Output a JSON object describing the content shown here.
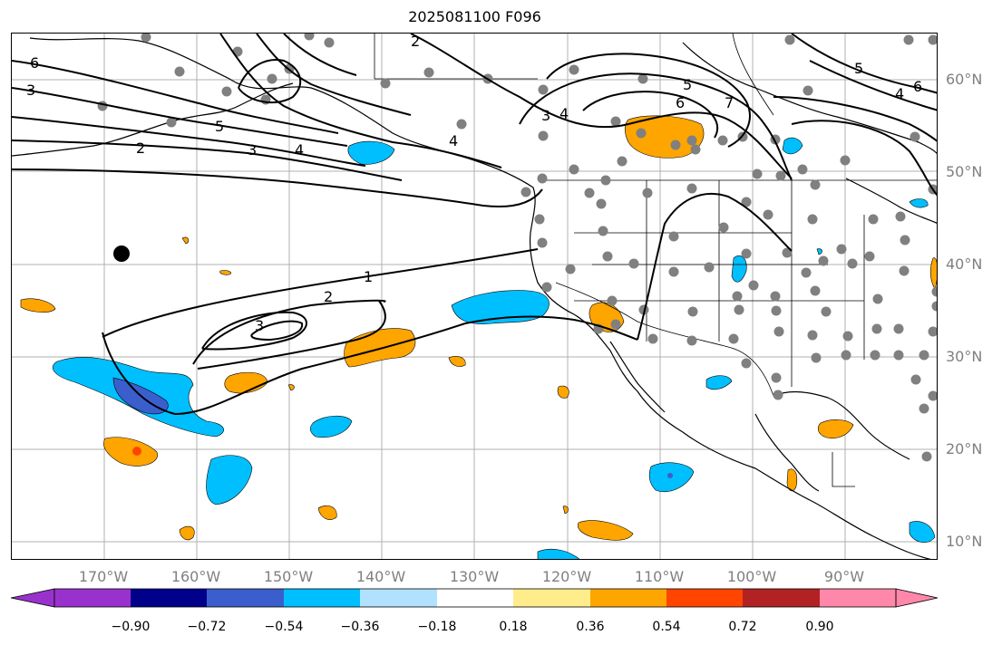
{
  "title": "2025081100 F096",
  "lat_labels": [
    "60°N",
    "50°N",
    "40°N",
    "30°N",
    "20°N",
    "10°N"
  ],
  "lon_labels": [
    "170°W",
    "160°W",
    "150°W",
    "140°W",
    "130°W",
    "120°W",
    "110°W",
    "100°W",
    "90°W"
  ],
  "colorbar": {
    "ticks": [
      "−0.90",
      "−0.72",
      "−0.54",
      "−0.36",
      "−0.18",
      "0.18",
      "0.36",
      "0.54",
      "0.72",
      "0.90"
    ],
    "colors": [
      "#9932cc",
      "#00008b",
      "#3a5fcd",
      "#00bfff",
      "#b0e2ff",
      "#ffffff",
      "#ffec8b",
      "#ffa500",
      "#ff4500",
      "#b22222",
      "#ff88aa"
    ]
  },
  "contour_labels": [
    "6",
    "3",
    "5",
    "2",
    "3",
    "4",
    "2",
    "4",
    "3",
    "4",
    "5",
    "6",
    "7",
    "5",
    "4",
    "6",
    "1",
    "2",
    "3"
  ],
  "colors": {
    "positive": "#ffa500",
    "negative": "#00bfff",
    "dots": "#808080",
    "grid": "#b0b0b0"
  }
}
